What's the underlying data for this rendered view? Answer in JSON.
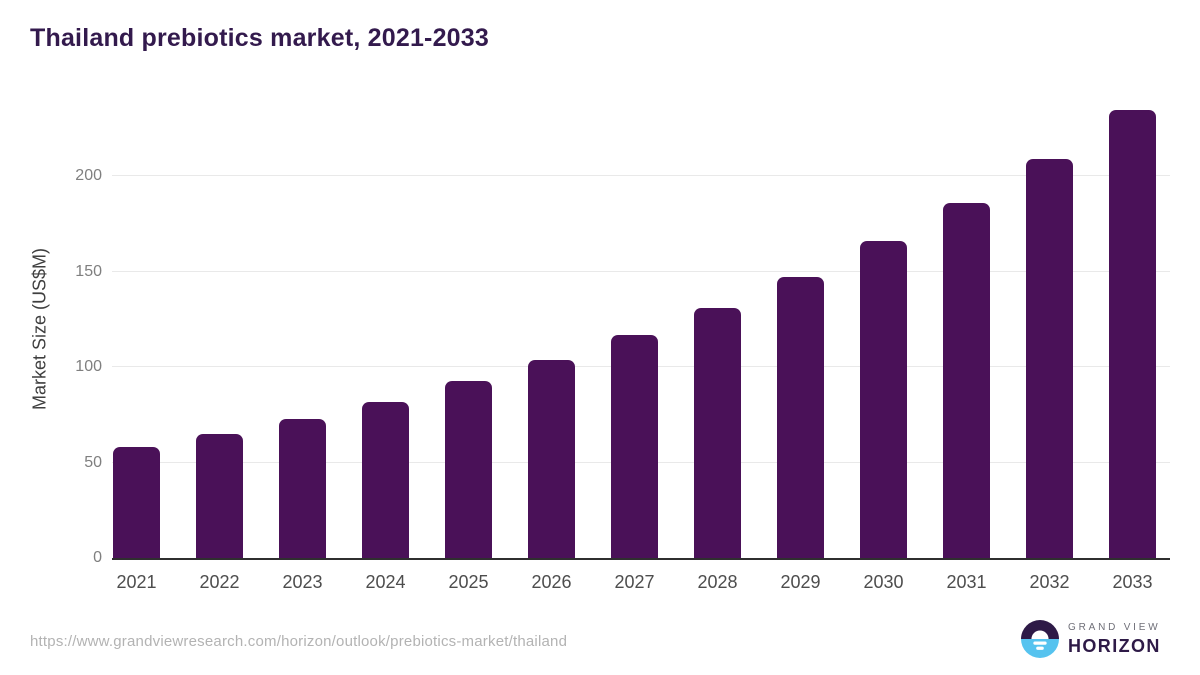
{
  "title": "Thailand prebiotics market, 2021-2033",
  "chart_data": {
    "type": "bar",
    "title": "Thailand prebiotics market, 2021-2033",
    "categories": [
      "2021",
      "2022",
      "2023",
      "2024",
      "2025",
      "2026",
      "2027",
      "2028",
      "2029",
      "2030",
      "2031",
      "2032",
      "2033"
    ],
    "values": [
      58,
      65,
      73,
      82,
      93,
      104,
      117,
      131,
      147,
      166,
      186,
      209,
      235
    ],
    "xlabel": "",
    "ylabel": "Market Size (US$M)",
    "yticks": [
      0,
      50,
      100,
      150,
      200
    ],
    "ylim": [
      0,
      240
    ],
    "grid": true,
    "legend": false,
    "bar_color": "#4a1158"
  },
  "footer": {
    "source_url": "https://www.grandviewresearch.com/horizon/outlook/prebiotics-market/thailand",
    "logo": {
      "line1": "GRAND VIEW",
      "line2": "HORIZON"
    }
  },
  "colors": {
    "bar": "#4a1158",
    "title_text": "#331a4d",
    "axis_line": "#2f2f2f",
    "gridline": "#e9e9e9",
    "y_tick_text": "#7f7f7f",
    "x_tick_text": "#4d4d4d",
    "url_text": "#b3b3b3",
    "logo_purple": "#2e1a47",
    "logo_blue": "#56c3ef"
  }
}
